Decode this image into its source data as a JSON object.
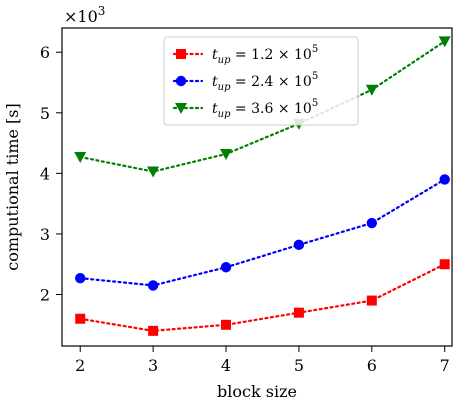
{
  "chart_data": {
    "type": "line",
    "title": "",
    "xlabel": "block size",
    "ylabel": "computional time [s]",
    "y_multiplier": "×10",
    "y_multiplier_exp": "3",
    "x": [
      2,
      3,
      4,
      5,
      6,
      7
    ],
    "xlim": [
      1.75,
      7.1
    ],
    "ylim": [
      1.15,
      6.4
    ],
    "x_ticks": [
      2,
      3,
      4,
      5,
      6,
      7
    ],
    "y_ticks": [
      2,
      3,
      4,
      5,
      6
    ],
    "grid": false,
    "legend_position": "top-center",
    "series": [
      {
        "name": "t_up = 1.2 × 10^5",
        "legend_label": "t",
        "legend_sub": "up",
        "legend_eq": " = 1.2 × 10",
        "legend_exp": "5",
        "color": "#ff0000",
        "marker": "square",
        "line_style": "dotted",
        "values": [
          1.6,
          1.4,
          1.5,
          1.7,
          1.9,
          2.5
        ]
      },
      {
        "name": "t_up = 2.4 × 10^5",
        "legend_label": "t",
        "legend_sub": "up",
        "legend_eq": " = 2.4 × 10",
        "legend_exp": "5",
        "color": "#0000ff",
        "marker": "circle",
        "line_style": "dotted",
        "values": [
          2.27,
          2.15,
          2.45,
          2.82,
          3.18,
          3.9
        ]
      },
      {
        "name": "t_up = 3.6 × 10^5",
        "legend_label": "t",
        "legend_sub": "up",
        "legend_eq": " = 3.6 × 10",
        "legend_exp": "5",
        "color": "#008000",
        "marker": "triangle-down",
        "line_style": "dotted",
        "values": [
          4.27,
          4.03,
          4.32,
          4.82,
          5.38,
          6.18
        ]
      }
    ]
  }
}
